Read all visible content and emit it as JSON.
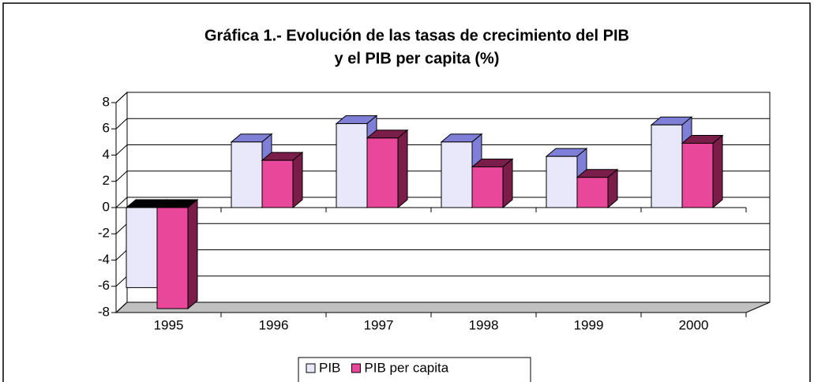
{
  "chart_data": {
    "type": "bar3d",
    "title": [
      "Gráfica 1.-  Evolución de las tasas de crecimiento del PIB",
      "y el PIB per capita (%)"
    ],
    "categories": [
      "1995",
      "1996",
      "1997",
      "1998",
      "1999",
      "2000"
    ],
    "series": [
      {
        "name": "PIB",
        "color": "#e8e8fa",
        "side_color": "#7f7fd8",
        "values": [
          -6.1,
          5.0,
          6.4,
          5.0,
          3.9,
          6.3
        ]
      },
      {
        "name": "PIB per capita",
        "color": "#e8479a",
        "side_color": "#7a1d48",
        "values": [
          -7.7,
          3.6,
          5.3,
          3.1,
          2.3,
          4.9
        ]
      }
    ],
    "ylim": [
      -8,
      8
    ],
    "yticks": [
      -8,
      -6,
      -4,
      -2,
      0,
      2,
      4,
      6,
      8
    ],
    "grid": true,
    "legend": "bottom"
  }
}
